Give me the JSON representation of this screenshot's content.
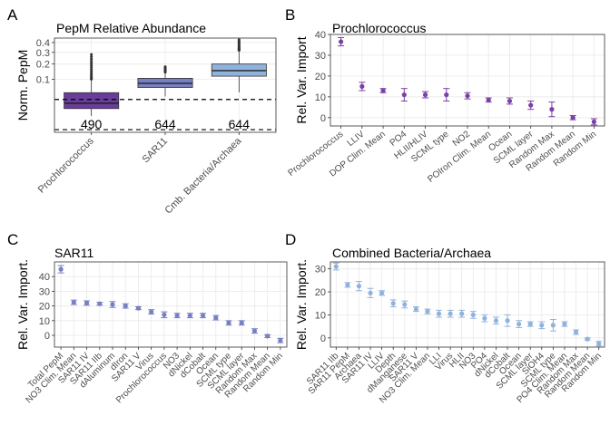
{
  "chart_data": [
    {
      "panel_label": "A",
      "type": "box",
      "title": "PepM Relative Abundance",
      "ylabel": "Norm. PepM",
      "yscale": "sqrt",
      "ylim": [
        0,
        0.45
      ],
      "yticks": [
        0.1,
        0.2,
        0.3,
        0.4
      ],
      "reference_lines": [
        0.02,
        -0.014
      ],
      "categories": [
        "Prochlorococcus",
        "SAR11",
        "Cmb. Bacteria/Archaea"
      ],
      "colors": [
        "#6a3d9a",
        "#7780c0",
        "#8fb2dc"
      ],
      "boxes": [
        {
          "q1": 0.004,
          "median": 0.012,
          "q3": 0.04,
          "whisker_low": 0.0,
          "whisker_high": 0.1,
          "outliers_max": 0.28
        },
        {
          "q1": 0.06,
          "median": 0.079,
          "q3": 0.105,
          "whisker_low": 0.028,
          "whisker_high": 0.142,
          "outliers_max": 0.18
        },
        {
          "q1": 0.117,
          "median": 0.152,
          "q3": 0.2,
          "whisker_low": 0.041,
          "whisker_high": 0.32,
          "outliers_max": 0.43
        }
      ],
      "n_labels": [
        "490",
        "644",
        "644"
      ]
    },
    {
      "panel_label": "B",
      "type": "errorbar",
      "title": "Prochlorococcus",
      "ylabel": "Rel. Var. Import",
      "ylim": [
        -4,
        40
      ],
      "yticks": [
        0,
        10,
        20,
        30,
        40
      ],
      "color": "#7b3fa6",
      "categories": [
        "Prochlorococcus",
        "LLIV",
        "DOP Clim. Mean",
        "PO4",
        "HLII/HLIV",
        "SCML type",
        "NO2",
        "POIron Clim. Mean",
        "Ocean",
        "SCML layer",
        "Random Max",
        "Random Mean",
        "Random Min"
      ],
      "values": [
        36.5,
        15,
        13,
        11,
        11,
        11,
        10.5,
        8.5,
        8,
        6,
        4,
        0,
        -2
      ],
      "err": [
        2,
        2,
        1,
        3,
        1.5,
        3,
        1.5,
        1,
        1.5,
        2,
        3.5,
        1,
        1.5
      ]
    },
    {
      "panel_label": "C",
      "type": "errorbar",
      "title": "SAR11",
      "ylabel": "Rel. Var. Import.",
      "ylim": [
        -8,
        50
      ],
      "yticks": [
        0,
        10,
        20,
        30,
        40
      ],
      "color": "#7780c0",
      "categories": [
        "Total PepM",
        "NO3 Clim. Mean",
        "SAR11 IV",
        "SAR11 IIb",
        "dAluminum",
        "dIron",
        "SAR11 V",
        "Virus",
        "Prochlorococcus",
        "NO3",
        "dNickel",
        "dCobalt",
        "Ocean",
        "SCML type",
        "SCML layer",
        "Random Max",
        "Random Mean",
        "Random Min"
      ],
      "values": [
        45,
        22.5,
        22,
        21.5,
        21,
        20,
        18.5,
        16,
        14,
        13.5,
        13.5,
        13.5,
        12,
        8.5,
        8.5,
        3,
        -0.5,
        -3.5
      ],
      "err": [
        2.5,
        1.5,
        1.5,
        1,
        2,
        1.5,
        1,
        1.5,
        2,
        1.5,
        1.5,
        1.5,
        1.5,
        1.5,
        1.5,
        1.5,
        1,
        1.5
      ]
    },
    {
      "panel_label": "D",
      "type": "errorbar",
      "title": "Combined Bacteria/Archaea",
      "ylabel": "Rel. Var. Import.",
      "ylim": [
        -4,
        33
      ],
      "yticks": [
        0,
        10,
        20,
        30
      ],
      "color": "#8fb2dc",
      "categories": [
        "SAR11 IIb",
        "SAR11 PepM",
        "Archaea",
        "SAR11 IV",
        "LLIV",
        "Depth",
        "dManganese",
        "SAR11 V",
        "NO3 Clim. Mean",
        "LLI",
        "Virus",
        "HLII",
        "NO3",
        "PO4",
        "dNickel",
        "dCobalt",
        "Ocean",
        "SCML layer",
        "SiOH4",
        "SCML type",
        "PO4 Clim. Mean",
        "Random Max",
        "Random Mean",
        "Random Min"
      ],
      "values": [
        31,
        23,
        22.5,
        19.5,
        19.5,
        15,
        14.5,
        12.5,
        11.5,
        10.5,
        10.5,
        10.5,
        10,
        8.5,
        7.5,
        7.5,
        6,
        6,
        5.5,
        5.5,
        6,
        2.5,
        -0.5,
        -2.5
      ],
      "err": [
        1.5,
        1,
        2,
        2,
        1,
        1.5,
        1.5,
        1,
        1,
        1.5,
        1.5,
        1.5,
        1.5,
        1.5,
        1.5,
        2.5,
        1.5,
        1,
        1.5,
        2.5,
        1,
        1,
        0.5,
        1
      ]
    }
  ]
}
